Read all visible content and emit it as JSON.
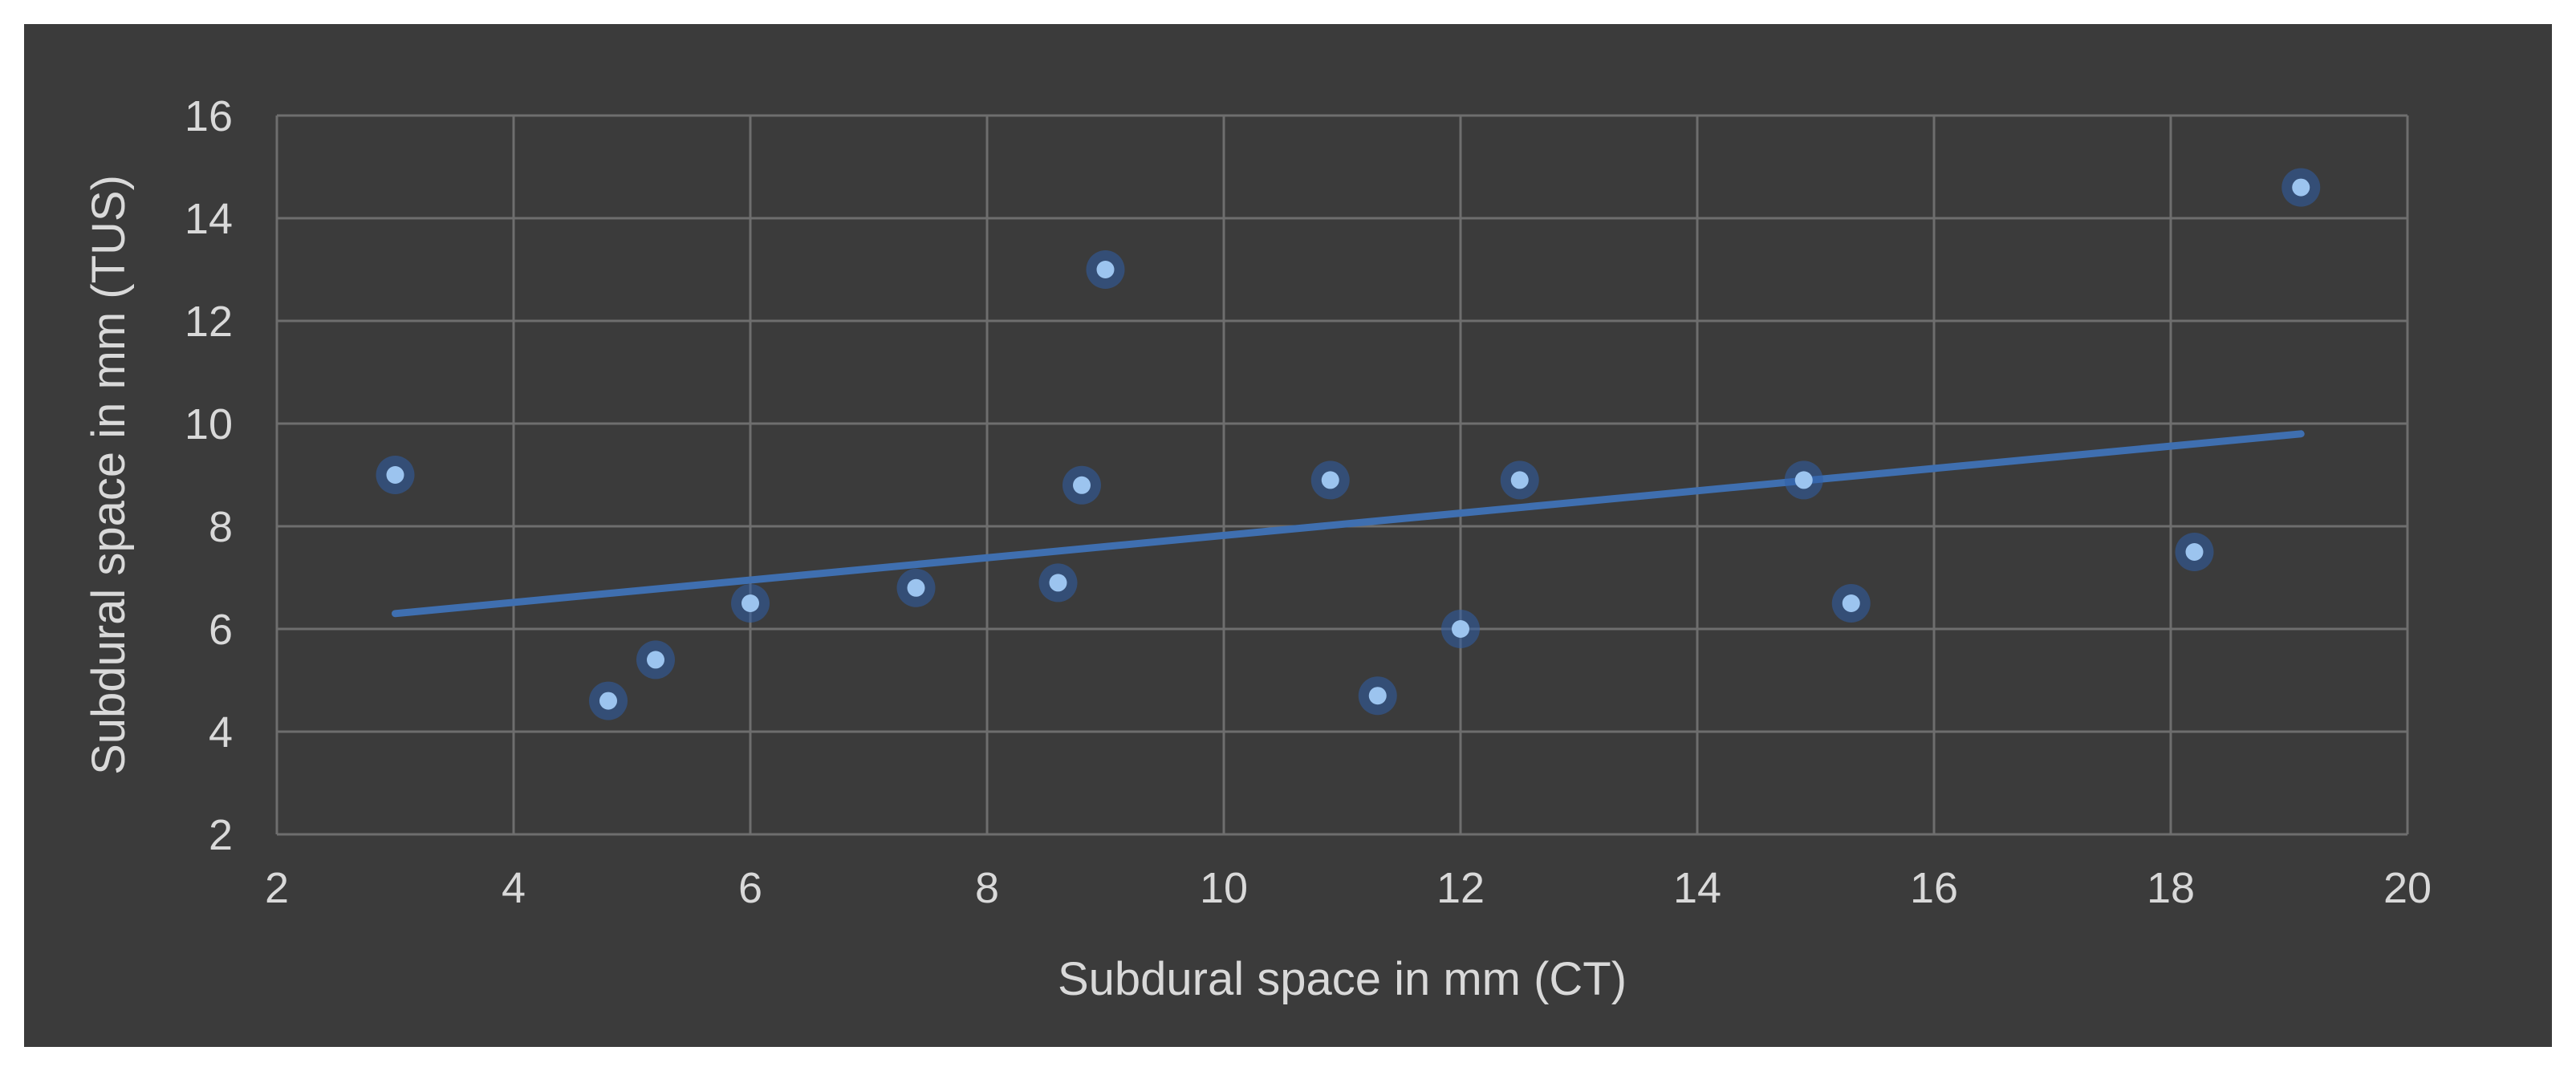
{
  "chart_data": {
    "type": "scatter",
    "title": "",
    "xlabel": "Subdural space in mm (CT)",
    "ylabel": "Subdural space  in mm (TUS)",
    "xlim": [
      2,
      20
    ],
    "ylim": [
      2,
      16
    ],
    "x_ticks": [
      2,
      4,
      6,
      8,
      10,
      12,
      14,
      16,
      18,
      20
    ],
    "y_ticks": [
      2,
      4,
      6,
      8,
      10,
      12,
      14,
      16
    ],
    "grid": true,
    "legend": "none",
    "series": [
      {
        "points": [
          {
            "x": 3.0,
            "y": 9.0
          },
          {
            "x": 4.8,
            "y": 4.6
          },
          {
            "x": 5.2,
            "y": 5.4
          },
          {
            "x": 6.0,
            "y": 6.5
          },
          {
            "x": 7.4,
            "y": 6.8
          },
          {
            "x": 8.6,
            "y": 6.9
          },
          {
            "x": 8.8,
            "y": 8.8
          },
          {
            "x": 9.0,
            "y": 13.0
          },
          {
            "x": 10.9,
            "y": 8.9
          },
          {
            "x": 11.3,
            "y": 4.7
          },
          {
            "x": 12.0,
            "y": 6.0
          },
          {
            "x": 12.5,
            "y": 8.9
          },
          {
            "x": 14.9,
            "y": 8.9
          },
          {
            "x": 15.3,
            "y": 6.5
          },
          {
            "x": 18.2,
            "y": 7.5
          },
          {
            "x": 19.1,
            "y": 14.6
          }
        ]
      }
    ],
    "trendline": {
      "type": "linear",
      "from": {
        "x": 3.0,
        "y": 6.3
      },
      "to": {
        "x": 19.1,
        "y": 9.8
      }
    },
    "colors": {
      "background": "#3b3b3b",
      "grid": "#6e6e6e",
      "text": "#d9d9d9",
      "point": "#9cc4ef",
      "point_glow": "#2f5fa8",
      "trendline": "#3f6fb0"
    }
  }
}
